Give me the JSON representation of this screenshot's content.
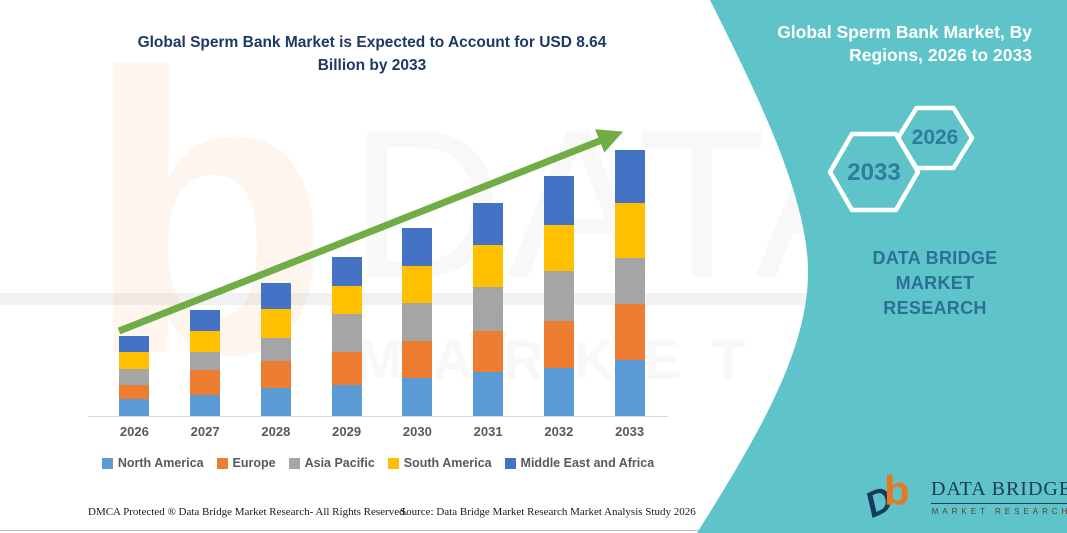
{
  "header": {
    "title_line1": "Global Sperm Bank Market is Expected to Account for USD 8.64",
    "title_line2": "Billion by 2033"
  },
  "side_panel": {
    "heading_line1": "Global Sperm Bank Market, By",
    "heading_line2": "Regions, 2026 to 2033",
    "hexagon_back_label": "2033",
    "hexagon_front_label": "2026",
    "brand_line1": "DATA BRIDGE MARKET",
    "brand_line2": "RESEARCH",
    "colors": {
      "panel_teal": "#5FC4CA",
      "hex_label": "#2D7D9F",
      "brand_text": "#2A7195"
    }
  },
  "logo": {
    "mark_b": "b",
    "mark_d": "D",
    "name": "DATA BRIDGE",
    "subtitle": "MARKET RESEARCH",
    "colors": {
      "orange": "#E87722",
      "navy": "#1B3A5F"
    }
  },
  "watermark": {
    "letter_b": "b",
    "big_text": "DATA BRIDGE",
    "spaced_text": "MARKET RESEARCH"
  },
  "footer": {
    "left_text": "DMCA Protected ® Data Bridge Market Research-  All Rights Reserved.",
    "right_text": "Source: Data Bridge Market Research  Market Analysis Study 2026"
  },
  "chart_data": {
    "type": "bar",
    "stacked": true,
    "unit": "USD Billion",
    "title": "Global Sperm Bank Market is Expected to Account for USD 8.64 Billion by 2033",
    "categories": [
      "2026",
      "2027",
      "2028",
      "2029",
      "2030",
      "2031",
      "2032",
      "2033"
    ],
    "series": [
      {
        "name": "North America",
        "color": "#5B9BD5",
        "values": [
          0.55,
          0.68,
          0.91,
          1.01,
          1.24,
          1.43,
          1.56,
          1.82
        ]
      },
      {
        "name": "Europe",
        "color": "#ED7D31",
        "values": [
          0.46,
          0.82,
          0.88,
          1.08,
          1.21,
          1.34,
          1.53,
          1.82
        ]
      },
      {
        "name": "Asia Pacific",
        "color": "#A5A5A5",
        "values": [
          0.52,
          0.59,
          0.75,
          1.21,
          1.21,
          1.43,
          1.63,
          1.5
        ]
      },
      {
        "name": "South America",
        "color": "#FFC000",
        "values": [
          0.55,
          0.68,
          0.95,
          0.91,
          1.21,
          1.34,
          1.47,
          1.79
        ]
      },
      {
        "name": "Middle East and Africa",
        "color": "#4472C4",
        "values": [
          0.52,
          0.68,
          0.82,
          0.95,
          1.24,
          1.37,
          1.6,
          1.71
        ]
      }
    ],
    "totals": [
      2.6,
      3.45,
      4.31,
      5.16,
      6.11,
      6.91,
      7.79,
      8.64
    ],
    "highlight_value": "USD 8.64 Billion",
    "highlight_year": "2033",
    "ylim": [
      0,
      8.64
    ],
    "grid": false,
    "legend_position": "bottom",
    "trend_arrow": {
      "show": true,
      "color": "#70AD47"
    }
  }
}
